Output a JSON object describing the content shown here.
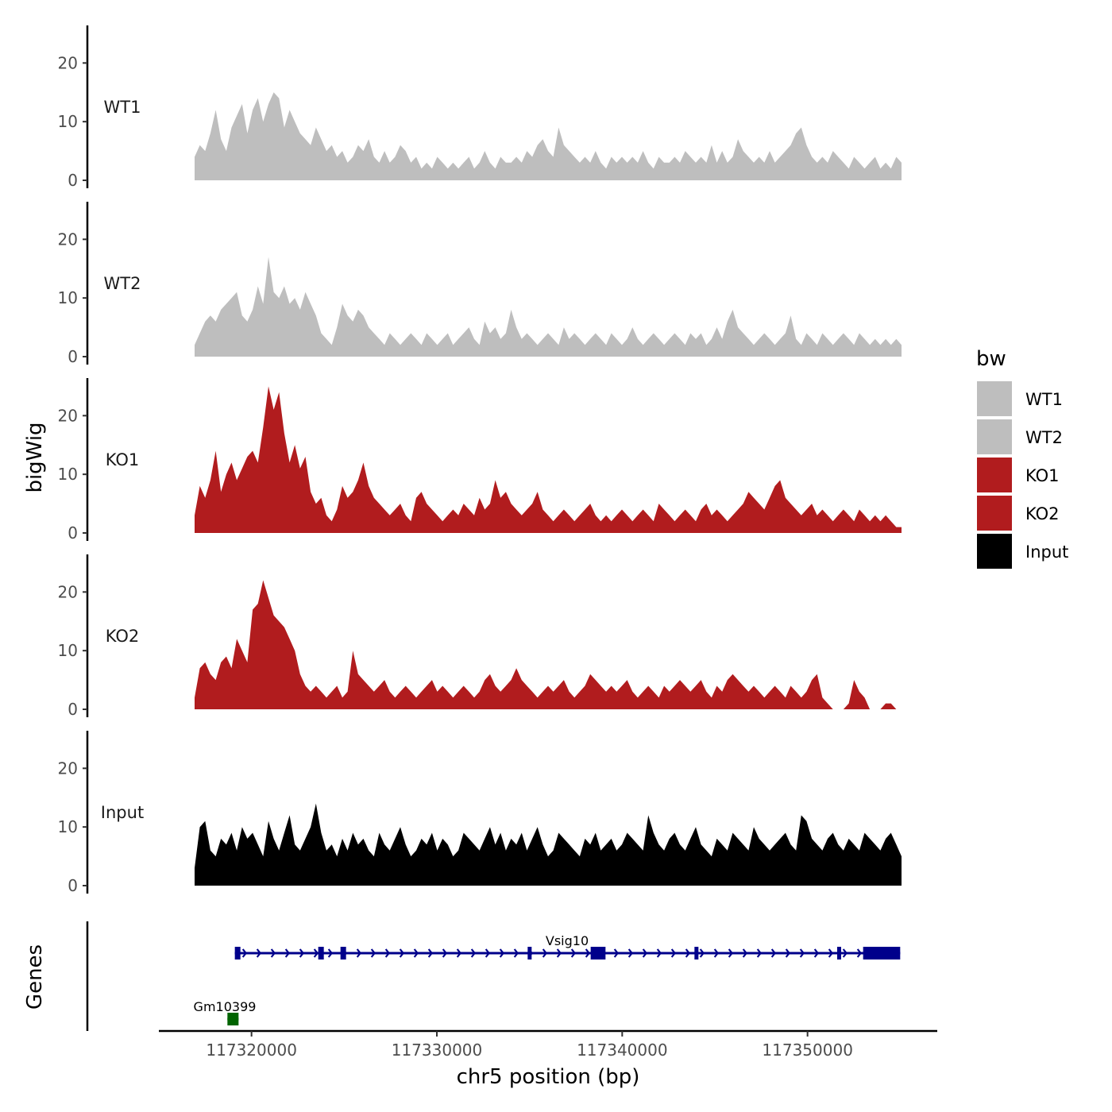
{
  "chart_data": {
    "type": "area",
    "xlabel": "chr5 position (bp)",
    "ylabel": "bigWig",
    "genes_label": "Genes",
    "xlim": [
      117315000,
      117357000
    ],
    "ylim": [
      0,
      26
    ],
    "y_ticks": [
      0,
      10,
      20
    ],
    "x_ticks": [
      117320000,
      117330000,
      117340000,
      117350000
    ],
    "x_tick_labels": [
      "117320000",
      "117330000",
      "117340000",
      "117350000"
    ],
    "legend": {
      "title": "bw",
      "position": "right",
      "entries": [
        "WT1",
        "WT2",
        "KO1",
        "KO2",
        "Input"
      ]
    },
    "series": [
      {
        "name": "WT1",
        "color": "#bebebe",
        "values": [
          4,
          6,
          5,
          8,
          12,
          7,
          5,
          9,
          11,
          13,
          8,
          12,
          14,
          10,
          13,
          15,
          14,
          9,
          12,
          10,
          8,
          7,
          6,
          9,
          7,
          5,
          6,
          4,
          5,
          3,
          4,
          6,
          5,
          7,
          4,
          3,
          5,
          3,
          4,
          6,
          5,
          3,
          4,
          2,
          3,
          2,
          4,
          3,
          2,
          3,
          2,
          3,
          4,
          2,
          3,
          5,
          3,
          2,
          4,
          3,
          3,
          4,
          3,
          5,
          4,
          6,
          7,
          5,
          4,
          9,
          6,
          5,
          4,
          3,
          4,
          3,
          5,
          3,
          2,
          4,
          3,
          4,
          3,
          4,
          3,
          5,
          3,
          2,
          4,
          3,
          3,
          4,
          3,
          5,
          4,
          3,
          4,
          3,
          6,
          3,
          5,
          3,
          4,
          7,
          5,
          4,
          3,
          4,
          3,
          5,
          3,
          4,
          5,
          6,
          8,
          9,
          6,
          4,
          3,
          4,
          3,
          5,
          4,
          3,
          2,
          4,
          3,
          2,
          3,
          4,
          2,
          3,
          2,
          4,
          3
        ]
      },
      {
        "name": "WT2",
        "color": "#bebebe",
        "values": [
          2,
          4,
          6,
          7,
          6,
          8,
          9,
          10,
          11,
          7,
          6,
          8,
          12,
          9,
          17,
          11,
          10,
          12,
          9,
          10,
          8,
          11,
          9,
          7,
          4,
          3,
          2,
          5,
          9,
          7,
          6,
          8,
          7,
          5,
          4,
          3,
          2,
          4,
          3,
          2,
          3,
          4,
          3,
          2,
          4,
          3,
          2,
          3,
          4,
          2,
          3,
          4,
          5,
          3,
          2,
          6,
          4,
          5,
          3,
          4,
          8,
          5,
          3,
          4,
          3,
          2,
          3,
          4,
          3,
          2,
          5,
          3,
          4,
          3,
          2,
          3,
          4,
          3,
          2,
          4,
          3,
          2,
          3,
          5,
          3,
          2,
          3,
          4,
          3,
          2,
          3,
          4,
          3,
          2,
          4,
          3,
          4,
          2,
          3,
          5,
          3,
          6,
          8,
          5,
          4,
          3,
          2,
          3,
          4,
          3,
          2,
          3,
          4,
          7,
          3,
          2,
          4,
          3,
          2,
          4,
          3,
          2,
          3,
          4,
          3,
          2,
          4,
          3,
          2,
          3,
          2,
          3,
          2,
          3,
          2
        ]
      },
      {
        "name": "KO1",
        "color": "#b11c1e",
        "values": [
          3,
          8,
          6,
          9,
          14,
          7,
          10,
          12,
          9,
          11,
          13,
          14,
          12,
          18,
          25,
          21,
          24,
          17,
          12,
          15,
          11,
          13,
          7,
          5,
          6,
          3,
          2,
          4,
          8,
          6,
          7,
          9,
          12,
          8,
          6,
          5,
          4,
          3,
          4,
          5,
          3,
          2,
          6,
          7,
          5,
          4,
          3,
          2,
          3,
          4,
          3,
          5,
          4,
          3,
          6,
          4,
          5,
          9,
          6,
          7,
          5,
          4,
          3,
          4,
          5,
          7,
          4,
          3,
          2,
          3,
          4,
          3,
          2,
          3,
          4,
          5,
          3,
          2,
          3,
          2,
          3,
          4,
          3,
          2,
          3,
          4,
          3,
          2,
          5,
          4,
          3,
          2,
          3,
          4,
          3,
          2,
          4,
          5,
          3,
          4,
          3,
          2,
          3,
          4,
          5,
          7,
          6,
          5,
          4,
          6,
          8,
          9,
          6,
          5,
          4,
          3,
          4,
          5,
          3,
          4,
          3,
          2,
          3,
          4,
          3,
          2,
          4,
          3,
          2,
          3,
          2,
          3,
          2,
          1,
          1
        ]
      },
      {
        "name": "KO2",
        "color": "#b11c1e",
        "values": [
          2,
          7,
          8,
          6,
          5,
          8,
          9,
          7,
          12,
          10,
          8,
          17,
          18,
          22,
          19,
          16,
          15,
          14,
          12,
          10,
          6,
          4,
          3,
          4,
          3,
          2,
          3,
          4,
          2,
          3,
          10,
          6,
          5,
          4,
          3,
          4,
          5,
          3,
          2,
          3,
          4,
          3,
          2,
          3,
          4,
          5,
          3,
          4,
          3,
          2,
          3,
          4,
          3,
          2,
          3,
          5,
          6,
          4,
          3,
          4,
          5,
          7,
          5,
          4,
          3,
          2,
          3,
          4,
          3,
          4,
          5,
          3,
          2,
          3,
          4,
          6,
          5,
          4,
          3,
          4,
          3,
          4,
          5,
          3,
          2,
          3,
          4,
          3,
          2,
          4,
          3,
          4,
          5,
          4,
          3,
          4,
          5,
          3,
          2,
          4,
          3,
          5,
          6,
          5,
          4,
          3,
          4,
          3,
          2,
          3,
          4,
          3,
          2,
          4,
          3,
          2,
          3,
          5,
          6,
          2,
          1,
          0,
          0,
          0,
          1,
          5,
          3,
          2,
          0,
          0,
          0,
          1,
          1,
          0,
          0
        ]
      },
      {
        "name": "Input",
        "color": "#000000",
        "values": [
          3,
          10,
          11,
          6,
          5,
          8,
          7,
          9,
          6,
          10,
          8,
          9,
          7,
          5,
          11,
          8,
          6,
          9,
          12,
          7,
          6,
          8,
          10,
          14,
          9,
          6,
          7,
          5,
          8,
          6,
          9,
          7,
          8,
          6,
          5,
          9,
          7,
          6,
          8,
          10,
          7,
          5,
          6,
          8,
          7,
          9,
          6,
          8,
          7,
          5,
          6,
          9,
          8,
          7,
          6,
          8,
          10,
          7,
          9,
          6,
          8,
          7,
          9,
          6,
          8,
          10,
          7,
          5,
          6,
          9,
          8,
          7,
          6,
          5,
          8,
          7,
          9,
          6,
          7,
          8,
          6,
          7,
          9,
          8,
          7,
          6,
          12,
          9,
          7,
          6,
          8,
          9,
          7,
          6,
          8,
          10,
          7,
          6,
          5,
          8,
          7,
          6,
          9,
          8,
          7,
          6,
          10,
          8,
          7,
          6,
          7,
          8,
          9,
          7,
          6,
          12,
          11,
          8,
          7,
          6,
          8,
          9,
          7,
          6,
          8,
          7,
          6,
          9,
          8,
          7,
          6,
          8,
          9,
          7,
          5
        ]
      }
    ],
    "genes": [
      {
        "name": "Vsig10",
        "color": "#00008b",
        "strand": "+",
        "start": 117319100,
        "end": 117355000,
        "exons": [
          [
            117319100,
            117319400
          ],
          [
            117323600,
            117323900
          ],
          [
            117324800,
            117325100
          ],
          [
            117334900,
            117335100
          ],
          [
            117338300,
            117339100
          ],
          [
            117343900,
            117344100
          ],
          [
            117351600,
            117351800
          ],
          [
            117353000,
            117355000
          ]
        ]
      },
      {
        "name": "Gm10399",
        "color": "#006400",
        "strand": "-",
        "start": 117318700,
        "end": 117319300,
        "exons": [
          [
            117318700,
            117319300
          ]
        ]
      }
    ]
  }
}
